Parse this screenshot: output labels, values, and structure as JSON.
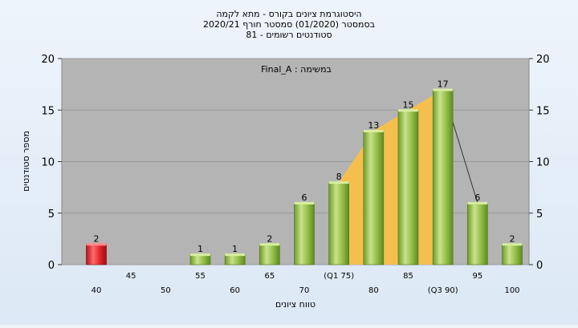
{
  "chart_data": {
    "type": "bar",
    "title_lines": [
      "היסטוגרמת ציונים בקורס - מתא לקמה",
      "בסמסטר  (01/2020)  סמסטר חורף  2020/21",
      "סטודנטים רשומים - 81"
    ],
    "annotation": "במשימה : Final_A",
    "xlabel": "טווח ציונים",
    "ylabel": "מספר סטודנטים",
    "ylim": [
      0,
      20
    ],
    "yticks": [
      0,
      5,
      10,
      15,
      20
    ],
    "categories": [
      40,
      45,
      50,
      55,
      60,
      65,
      70,
      75,
      80,
      85,
      90,
      95,
      100
    ],
    "x_tick_labels": [
      "40",
      "45",
      "50",
      "55",
      "60",
      "65",
      "70",
      "(Q1 75)",
      "80",
      "85",
      "(Q3 90)",
      "95",
      "100"
    ],
    "values": [
      2,
      0,
      0,
      1,
      1,
      2,
      6,
      8,
      13,
      15,
      17,
      6,
      2
    ],
    "value_labels": [
      "2",
      "",
      "",
      "1",
      "1",
      "2",
      "6",
      "8",
      "13",
      "15",
      "17",
      "6",
      "2"
    ],
    "highlight_category": 40,
    "interquartile_area": {
      "from": 75,
      "to": 90
    },
    "grid": true,
    "colors": {
      "bar": "#8fba45",
      "bar_highlight": "#e0202a",
      "plot_background": "#b4b4b4",
      "area": "#f9c04a"
    }
  }
}
